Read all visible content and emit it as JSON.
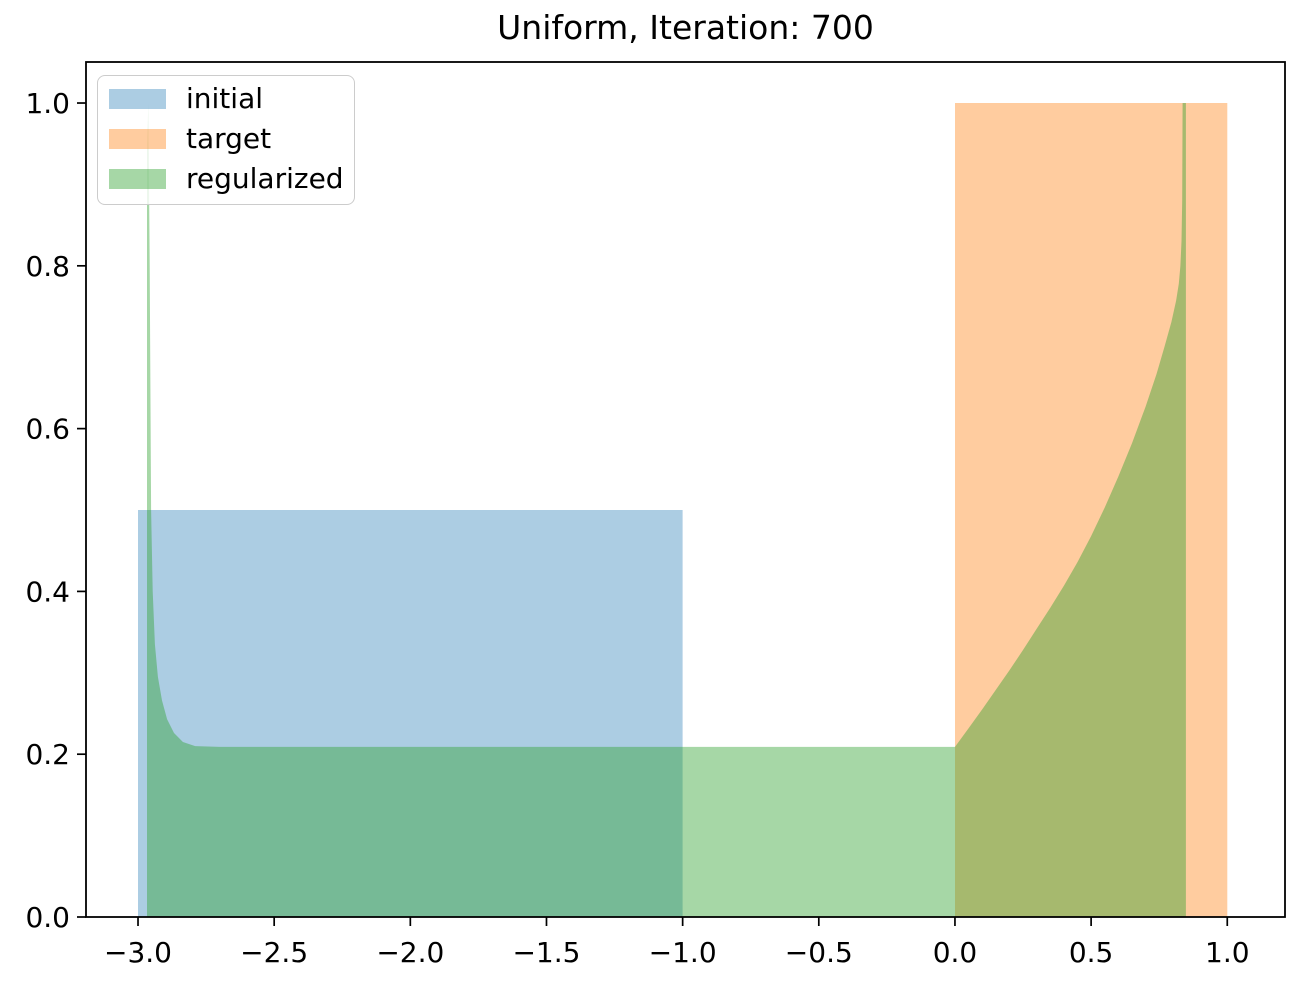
{
  "chart_data": {
    "type": "area",
    "title": "Uniform, Iteration: 700",
    "xlabel": "",
    "ylabel": "",
    "xlim": [
      -3.191,
      1.212
    ],
    "ylim": [
      0,
      1.0504
    ],
    "grid": false,
    "legend_position": "upper left",
    "x_ticks": [
      -3.0,
      -2.5,
      -2.0,
      -1.5,
      -1.0,
      -0.5,
      0.0,
      0.5,
      1.0
    ],
    "x_tick_labels": [
      "−3.0",
      "−2.5",
      "−2.0",
      "−1.5",
      "−1.0",
      "−0.5",
      "0.0",
      "0.5",
      "1.0"
    ],
    "y_ticks": [
      0.0,
      0.2,
      0.4,
      0.6,
      0.8,
      1.0
    ],
    "y_tick_labels": [
      "0.0",
      "0.2",
      "0.4",
      "0.6",
      "0.8",
      "1.0"
    ],
    "series": [
      {
        "name": "initial",
        "description": "uniform density on [-3,-1], height 0.5",
        "color": "#1f77b4",
        "alpha": 0.37,
        "points": [
          [
            -3.0,
            0
          ],
          [
            -3.0,
            0.5
          ],
          [
            -1.0,
            0.5
          ],
          [
            -1.0,
            0
          ]
        ]
      },
      {
        "name": "target",
        "description": "uniform density on [0,1], height 1.0",
        "color": "#ff7f0e",
        "alpha": 0.4,
        "points": [
          [
            0.0,
            0
          ],
          [
            0.0,
            1.0
          ],
          [
            1.0,
            1.0
          ],
          [
            1.0,
            0
          ]
        ]
      },
      {
        "name": "regularized",
        "description": "regularized transport density: boundary spike at x=-2.96 to 1.0, flat 0.209 on [-2.8,0], convex rise to ~0.78 near x=0.82, spike to 1.0 at x=0.84, support ends x=0.848",
        "color": "#2ca02c",
        "alpha": 0.42,
        "points": [
          [
            -2.967,
            0
          ],
          [
            -2.967,
            0.95
          ],
          [
            -2.962,
            1.0
          ],
          [
            -2.957,
            0.8
          ],
          [
            -2.952,
            0.5
          ],
          [
            -2.946,
            0.4
          ],
          [
            -2.938,
            0.335
          ],
          [
            -2.927,
            0.295
          ],
          [
            -2.912,
            0.266
          ],
          [
            -2.893,
            0.243
          ],
          [
            -2.868,
            0.226
          ],
          [
            -2.835,
            0.215
          ],
          [
            -2.79,
            0.21
          ],
          [
            -2.7,
            0.209
          ],
          [
            -2.0,
            0.209
          ],
          [
            -1.0,
            0.209
          ],
          [
            -0.5,
            0.209
          ],
          [
            0.0,
            0.209
          ],
          [
            0.05,
            0.232
          ],
          [
            0.1,
            0.255
          ],
          [
            0.15,
            0.279
          ],
          [
            0.2,
            0.303
          ],
          [
            0.25,
            0.328
          ],
          [
            0.3,
            0.354
          ],
          [
            0.35,
            0.38
          ],
          [
            0.4,
            0.407
          ],
          [
            0.45,
            0.436
          ],
          [
            0.5,
            0.468
          ],
          [
            0.55,
            0.503
          ],
          [
            0.6,
            0.541
          ],
          [
            0.65,
            0.582
          ],
          [
            0.7,
            0.627
          ],
          [
            0.74,
            0.667
          ],
          [
            0.77,
            0.701
          ],
          [
            0.795,
            0.731
          ],
          [
            0.812,
            0.757
          ],
          [
            0.822,
            0.778
          ],
          [
            0.828,
            0.8
          ],
          [
            0.832,
            0.83
          ],
          [
            0.8345,
            0.88
          ],
          [
            0.836,
            1.0
          ],
          [
            0.848,
            1.0
          ],
          [
            0.848,
            0
          ]
        ]
      }
    ],
    "legend_entries": [
      "initial",
      "target",
      "regularized"
    ]
  }
}
